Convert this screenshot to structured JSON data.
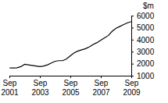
{
  "chart_data": {
    "type": "line",
    "ylabel": "$m",
    "categories": [
      "Sep 2001",
      null,
      null,
      null,
      null,
      null,
      null,
      null,
      "Sep 2003",
      null,
      null,
      null,
      null,
      null,
      null,
      null,
      "Sep 2005",
      null,
      null,
      null,
      null,
      null,
      null,
      null,
      "Sep 2007",
      null,
      null,
      null,
      null,
      null,
      null,
      null,
      "Sep 2009"
    ],
    "values": [
      1650,
      1640,
      1660,
      1750,
      1950,
      1900,
      1850,
      1800,
      1750,
      1800,
      1900,
      2050,
      2200,
      2250,
      2250,
      2400,
      2650,
      2900,
      3050,
      3150,
      3250,
      3400,
      3600,
      3750,
      3950,
      4150,
      4350,
      4700,
      4950,
      5100,
      5250,
      5400,
      5500
    ],
    "color": "#000000",
    "ylim": [
      1000,
      6000
    ],
    "yticks": [
      1000,
      2000,
      3000,
      4000,
      5000,
      6000
    ],
    "grid": false
  }
}
